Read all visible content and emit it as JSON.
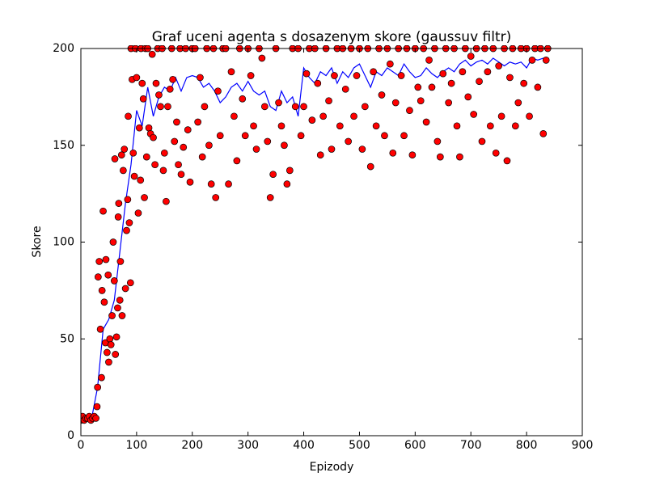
{
  "chart_data": {
    "type": "scatter",
    "title": "Graf uceni agenta s dosazenym skore (gaussuv filtr)",
    "x_label": "Epizody",
    "y_label": "Skore",
    "xlim": [
      0,
      900
    ],
    "xticks": [
      0,
      100,
      200,
      300,
      400,
      500,
      600,
      700,
      800,
      900
    ],
    "ylim": [
      0,
      200
    ],
    "yticks": [
      0,
      50,
      100,
      150,
      200
    ],
    "grid": false,
    "series": [
      {
        "mode": "line",
        "color": "#0000ff",
        "x": [
          0,
          10,
          20,
          30,
          40,
          50,
          60,
          70,
          80,
          90,
          100,
          110,
          120,
          130,
          140,
          150,
          160,
          170,
          180,
          190,
          200,
          210,
          220,
          230,
          240,
          250,
          260,
          270,
          280,
          290,
          300,
          310,
          320,
          330,
          340,
          350,
          360,
          370,
          380,
          390,
          400,
          410,
          420,
          430,
          440,
          450,
          460,
          470,
          480,
          490,
          500,
          510,
          520,
          530,
          540,
          550,
          560,
          570,
          580,
          590,
          600,
          610,
          620,
          630,
          640,
          650,
          660,
          670,
          680,
          690,
          700,
          710,
          720,
          730,
          740,
          750,
          760,
          770,
          780,
          790,
          800,
          810,
          820,
          830,
          838
        ],
        "values": [
          9,
          9,
          10,
          25,
          55,
          60,
          70,
          95,
          120,
          140,
          168,
          160,
          180,
          165,
          175,
          180,
          178,
          185,
          178,
          185,
          186,
          185,
          180,
          182,
          178,
          172,
          175,
          180,
          182,
          178,
          183,
          178,
          176,
          178,
          170,
          168,
          178,
          172,
          175,
          165,
          190,
          185,
          182,
          188,
          186,
          190,
          182,
          188,
          185,
          190,
          192,
          186,
          180,
          188,
          186,
          190,
          188,
          186,
          192,
          188,
          185,
          186,
          190,
          187,
          185,
          188,
          190,
          188,
          192,
          194,
          191,
          193,
          194,
          192,
          195,
          193,
          191,
          193,
          192,
          193,
          190,
          195,
          194,
          195,
          194
        ]
      },
      {
        "mode": "markers",
        "color": "#ff0000",
        "x": [
          0,
          3,
          6,
          9,
          12,
          15,
          18,
          21,
          24,
          27,
          29,
          30,
          31,
          33,
          35,
          37,
          38,
          40,
          42,
          44,
          45,
          47,
          49,
          50,
          52,
          54,
          56,
          58,
          60,
          61,
          62,
          64,
          66,
          67,
          68,
          70,
          71,
          73,
          74,
          76,
          78,
          80,
          82,
          84,
          85,
          87,
          89,
          90,
          92,
          94,
          96,
          98,
          100,
          103,
          105,
          107,
          108,
          110,
          112,
          114,
          116,
          118,
          120,
          122,
          125,
          128,
          130,
          133,
          135,
          138,
          140,
          143,
          146,
          148,
          150,
          153,
          156,
          160,
          163,
          165,
          168,
          172,
          175,
          178,
          180,
          184,
          188,
          192,
          196,
          200,
          205,
          210,
          214,
          218,
          222,
          226,
          230,
          234,
          238,
          242,
          246,
          250,
          255,
          260,
          265,
          270,
          275,
          280,
          285,
          290,
          295,
          300,
          305,
          310,
          315,
          320,
          325,
          330,
          335,
          340,
          345,
          350,
          355,
          360,
          365,
          370,
          375,
          380,
          385,
          390,
          395,
          400,
          405,
          410,
          415,
          420,
          425,
          430,
          435,
          440,
          445,
          450,
          455,
          460,
          465,
          470,
          475,
          480,
          485,
          490,
          495,
          500,
          505,
          510,
          515,
          520,
          525,
          530,
          535,
          540,
          545,
          550,
          555,
          560,
          565,
          570,
          575,
          580,
          585,
          590,
          595,
          600,
          605,
          610,
          615,
          620,
          625,
          630,
          635,
          640,
          645,
          650,
          655,
          660,
          665,
          670,
          675,
          680,
          685,
          690,
          695,
          700,
          705,
          710,
          715,
          720,
          725,
          730,
          735,
          740,
          745,
          750,
          755,
          760,
          765,
          770,
          775,
          780,
          785,
          790,
          795,
          800,
          805,
          810,
          815,
          820,
          825,
          830,
          835,
          838
        ],
        "values": [
          8,
          10,
          8,
          9,
          9,
          10,
          8,
          9,
          10,
          9,
          15,
          25,
          82,
          90,
          55,
          30,
          75,
          116,
          69,
          48,
          91,
          43,
          83,
          38,
          50,
          47,
          62,
          100,
          80,
          143,
          42,
          51,
          66,
          113,
          120,
          70,
          90,
          145,
          62,
          137,
          148,
          76,
          106,
          122,
          165,
          110,
          79,
          200,
          184,
          146,
          134,
          200,
          185,
          115,
          159,
          132,
          200,
          182,
          174,
          123,
          200,
          144,
          200,
          159,
          156,
          197,
          154,
          140,
          182,
          200,
          176,
          170,
          200,
          137,
          146,
          121,
          170,
          179,
          200,
          184,
          152,
          162,
          140,
          200,
          135,
          149,
          200,
          158,
          131,
          200,
          200,
          162,
          185,
          144,
          170,
          200,
          150,
          130,
          200,
          123,
          178,
          155,
          200,
          200,
          130,
          188,
          165,
          142,
          200,
          174,
          155,
          200,
          186,
          160,
          148,
          200,
          195,
          170,
          152,
          123,
          135,
          200,
          172,
          160,
          150,
          130,
          137,
          200,
          170,
          200,
          155,
          170,
          187,
          200,
          163,
          200,
          182,
          145,
          165,
          200,
          173,
          148,
          186,
          200,
          160,
          200,
          179,
          152,
          200,
          165,
          186,
          200,
          148,
          170,
          200,
          139,
          188,
          160,
          200,
          176,
          155,
          200,
          192,
          146,
          172,
          200,
          186,
          155,
          200,
          168,
          145,
          200,
          180,
          173,
          200,
          162,
          194,
          180,
          200,
          152,
          144,
          187,
          200,
          172,
          182,
          200,
          160,
          144,
          188,
          200,
          175,
          196,
          166,
          200,
          183,
          152,
          200,
          188,
          160,
          200,
          146,
          191,
          165,
          200,
          142,
          185,
          200,
          160,
          172,
          200,
          182,
          200,
          165,
          194,
          200,
          180,
          200,
          156,
          194,
          200
        ]
      }
    ]
  }
}
